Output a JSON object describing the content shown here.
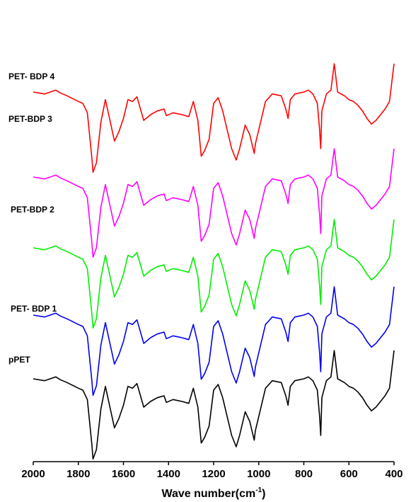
{
  "chart_data": {
    "type": "line",
    "title": "",
    "xlabel_prefix": "Wave number(cm",
    "xlabel_sup": "-1",
    "xlabel_suffix": ")",
    "ylabel": "",
    "xlim": [
      2000,
      400
    ],
    "x_reversed": true,
    "x_ticks": [
      2000,
      1800,
      1600,
      1400,
      1200,
      1000,
      800,
      600,
      400
    ],
    "grid": false,
    "legend": "inline labels",
    "series": [
      {
        "name": "PET- BDP 4",
        "color": "#ff0000",
        "x": [
          2000,
          1950,
          1900,
          1880,
          1850,
          1800,
          1780,
          1760,
          1740,
          1735,
          1720,
          1700,
          1680,
          1660,
          1640,
          1620,
          1600,
          1580,
          1560,
          1540,
          1510,
          1480,
          1450,
          1420,
          1410,
          1380,
          1340,
          1310,
          1290,
          1270,
          1255,
          1240,
          1220,
          1200,
          1180,
          1160,
          1140,
          1120,
          1100,
          1085,
          1060,
          1040,
          1020,
          1015,
          1000,
          970,
          940,
          900,
          880,
          870,
          860,
          840,
          800,
          780,
          760,
          740,
          730,
          725,
          720,
          700,
          680,
          665,
          650,
          620,
          600,
          580,
          560,
          540,
          520,
          500,
          480,
          460,
          440,
          420,
          410,
          400
        ],
        "y": [
          90,
          88,
          92,
          89,
          86,
          80,
          78,
          68,
          20,
          5,
          15,
          58,
          82,
          60,
          38,
          48,
          62,
          82,
          80,
          85,
          60,
          66,
          70,
          72,
          65,
          68,
          66,
          64,
          80,
          60,
          22,
          28,
          40,
          78,
          84,
          70,
          50,
          30,
          18,
          30,
          55,
          45,
          25,
          35,
          50,
          80,
          88,
          86,
          72,
          62,
          82,
          88,
          90,
          92,
          88,
          78,
          50,
          30,
          70,
          88,
          92,
          120,
          90,
          86,
          82,
          80,
          76,
          70,
          62,
          56,
          60,
          66,
          72,
          80,
          100,
          120
        ]
      },
      {
        "name": "PET-BDP 3",
        "color": "#ff00ff",
        "x": [
          2000,
          1950,
          1900,
          1880,
          1850,
          1800,
          1780,
          1760,
          1740,
          1735,
          1720,
          1700,
          1680,
          1660,
          1640,
          1620,
          1600,
          1580,
          1560,
          1540,
          1510,
          1480,
          1450,
          1420,
          1410,
          1380,
          1340,
          1310,
          1290,
          1270,
          1255,
          1240,
          1220,
          1200,
          1180,
          1160,
          1140,
          1120,
          1100,
          1085,
          1060,
          1040,
          1020,
          1015,
          1000,
          970,
          940,
          900,
          880,
          870,
          860,
          840,
          800,
          780,
          760,
          740,
          730,
          725,
          720,
          700,
          680,
          665,
          650,
          620,
          600,
          580,
          560,
          540,
          520,
          500,
          480,
          460,
          440,
          420,
          410,
          400
        ],
        "y": [
          90,
          88,
          92,
          89,
          86,
          80,
          78,
          68,
          20,
          5,
          15,
          58,
          82,
          60,
          38,
          48,
          62,
          82,
          80,
          85,
          60,
          66,
          70,
          72,
          65,
          68,
          66,
          64,
          80,
          60,
          22,
          28,
          40,
          78,
          84,
          70,
          50,
          30,
          18,
          30,
          55,
          45,
          25,
          35,
          50,
          80,
          88,
          86,
          72,
          62,
          82,
          88,
          90,
          92,
          88,
          78,
          50,
          30,
          70,
          88,
          92,
          120,
          90,
          86,
          82,
          80,
          76,
          70,
          62,
          56,
          60,
          66,
          72,
          80,
          100,
          120
        ]
      },
      {
        "name": "PET-BDP 2",
        "color": "#00ee00",
        "x": [
          2000,
          1950,
          1900,
          1880,
          1850,
          1800,
          1780,
          1760,
          1740,
          1735,
          1720,
          1700,
          1680,
          1660,
          1640,
          1620,
          1600,
          1580,
          1560,
          1540,
          1510,
          1480,
          1450,
          1420,
          1410,
          1380,
          1340,
          1310,
          1290,
          1270,
          1255,
          1240,
          1220,
          1200,
          1180,
          1160,
          1140,
          1120,
          1100,
          1085,
          1060,
          1040,
          1020,
          1015,
          1000,
          970,
          940,
          900,
          880,
          870,
          860,
          840,
          800,
          780,
          760,
          740,
          730,
          725,
          720,
          700,
          680,
          665,
          650,
          620,
          600,
          580,
          560,
          540,
          520,
          500,
          480,
          460,
          440,
          420,
          410,
          400
        ],
        "y": [
          90,
          88,
          92,
          89,
          86,
          80,
          78,
          68,
          20,
          5,
          15,
          58,
          82,
          60,
          38,
          48,
          62,
          82,
          80,
          85,
          60,
          66,
          70,
          72,
          65,
          68,
          66,
          64,
          80,
          60,
          22,
          28,
          40,
          78,
          84,
          70,
          50,
          30,
          18,
          30,
          55,
          45,
          25,
          35,
          50,
          80,
          88,
          86,
          72,
          62,
          82,
          88,
          90,
          92,
          88,
          78,
          50,
          30,
          70,
          88,
          92,
          120,
          90,
          86,
          82,
          80,
          76,
          70,
          62,
          56,
          60,
          66,
          72,
          80,
          100,
          120
        ]
      },
      {
        "name": "PET- BDP 1",
        "color": "#0000ee",
        "x": [
          2000,
          1950,
          1900,
          1880,
          1850,
          1800,
          1780,
          1760,
          1740,
          1735,
          1720,
          1700,
          1680,
          1660,
          1640,
          1620,
          1600,
          1580,
          1560,
          1540,
          1510,
          1480,
          1450,
          1420,
          1410,
          1380,
          1340,
          1310,
          1290,
          1270,
          1255,
          1240,
          1220,
          1200,
          1180,
          1160,
          1140,
          1120,
          1100,
          1085,
          1060,
          1040,
          1020,
          1015,
          1000,
          970,
          940,
          900,
          880,
          870,
          860,
          840,
          800,
          780,
          760,
          740,
          730,
          725,
          720,
          700,
          680,
          665,
          650,
          620,
          600,
          580,
          560,
          540,
          520,
          500,
          480,
          460,
          440,
          420,
          410,
          400
        ],
        "y": [
          90,
          88,
          92,
          89,
          86,
          80,
          78,
          68,
          20,
          5,
          15,
          58,
          82,
          60,
          38,
          48,
          62,
          82,
          80,
          85,
          60,
          66,
          70,
          72,
          65,
          68,
          66,
          64,
          80,
          60,
          22,
          28,
          40,
          78,
          84,
          70,
          50,
          30,
          18,
          30,
          55,
          45,
          25,
          35,
          50,
          80,
          88,
          86,
          72,
          62,
          82,
          88,
          90,
          92,
          88,
          78,
          50,
          30,
          70,
          88,
          92,
          120,
          90,
          86,
          82,
          80,
          76,
          70,
          62,
          56,
          60,
          66,
          72,
          80,
          100,
          120
        ]
      },
      {
        "name": "pPET",
        "color": "#000000",
        "x": [
          2000,
          1950,
          1900,
          1880,
          1850,
          1800,
          1780,
          1760,
          1740,
          1735,
          1720,
          1700,
          1680,
          1660,
          1640,
          1620,
          1600,
          1580,
          1560,
          1540,
          1510,
          1480,
          1450,
          1420,
          1410,
          1380,
          1340,
          1310,
          1290,
          1270,
          1255,
          1240,
          1220,
          1200,
          1180,
          1160,
          1140,
          1120,
          1100,
          1085,
          1060,
          1040,
          1020,
          1015,
          1000,
          970,
          940,
          900,
          880,
          870,
          860,
          840,
          800,
          780,
          760,
          740,
          730,
          725,
          720,
          700,
          680,
          665,
          650,
          620,
          600,
          580,
          560,
          540,
          520,
          500,
          480,
          460,
          440,
          420,
          410,
          400
        ],
        "y": [
          90,
          88,
          92,
          89,
          86,
          80,
          78,
          68,
          20,
          5,
          15,
          58,
          82,
          60,
          38,
          48,
          62,
          82,
          80,
          85,
          60,
          66,
          70,
          72,
          65,
          68,
          66,
          64,
          80,
          60,
          22,
          28,
          40,
          78,
          84,
          70,
          50,
          30,
          18,
          30,
          55,
          45,
          25,
          35,
          50,
          80,
          88,
          86,
          72,
          62,
          82,
          88,
          90,
          92,
          88,
          78,
          50,
          30,
          70,
          88,
          92,
          120,
          90,
          86,
          82,
          80,
          76,
          70,
          62,
          56,
          60,
          66,
          72,
          80,
          100,
          120
        ]
      }
    ]
  }
}
